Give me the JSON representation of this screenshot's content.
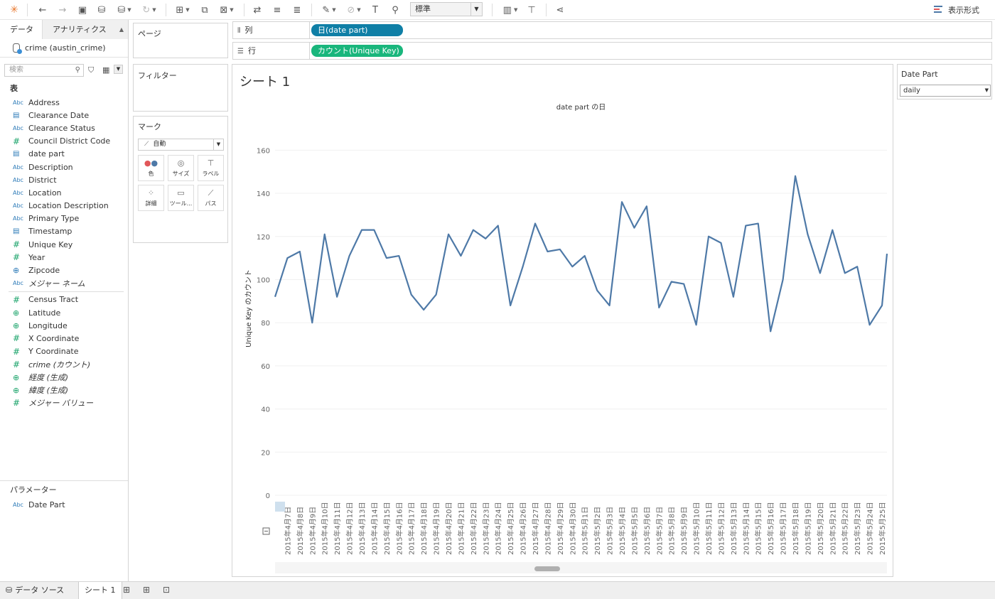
{
  "toolbar": {
    "standard_select": "標準",
    "show_me_label": "表示形式"
  },
  "data_pane": {
    "tab_data": "データ",
    "tab_analytics": "アナリティクス",
    "datasource": "crime (austin_crime)",
    "search_placeholder": "検索",
    "tables_header": "表",
    "dimensions": [
      {
        "icon": "Abc",
        "label": "Address",
        "type": "string"
      },
      {
        "icon": "cal",
        "label": "Clearance Date",
        "type": "date"
      },
      {
        "icon": "Abc",
        "label": "Clearance Status",
        "type": "string"
      },
      {
        "icon": "#",
        "label": "Council District Code",
        "type": "number-dim"
      },
      {
        "icon": "cal",
        "label": "date part",
        "type": "date"
      },
      {
        "icon": "Abc",
        "label": "Description",
        "type": "string"
      },
      {
        "icon": "Abc",
        "label": "District",
        "type": "string"
      },
      {
        "icon": "Abc",
        "label": "Location",
        "type": "string"
      },
      {
        "icon": "Abc",
        "label": "Location Description",
        "type": "string"
      },
      {
        "icon": "Abc",
        "label": "Primary Type",
        "type": "string"
      },
      {
        "icon": "cal",
        "label": "Timestamp",
        "type": "date"
      },
      {
        "icon": "#",
        "label": "Unique Key",
        "type": "number-dim"
      },
      {
        "icon": "#",
        "label": "Year",
        "type": "number-dim"
      },
      {
        "icon": "globe",
        "label": "Zipcode",
        "type": "geo"
      },
      {
        "icon": "Abc",
        "label": "メジャー ネーム",
        "type": "string",
        "italic": true
      }
    ],
    "measures": [
      {
        "icon": "#",
        "label": "Census Tract",
        "type": "measure"
      },
      {
        "icon": "globe",
        "label": "Latitude",
        "type": "geo-m"
      },
      {
        "icon": "globe",
        "label": "Longitude",
        "type": "geo-m"
      },
      {
        "icon": "#",
        "label": "X Coordinate",
        "type": "measure"
      },
      {
        "icon": "#",
        "label": "Y Coordinate",
        "type": "measure"
      },
      {
        "icon": "#",
        "label": "crime (カウント)",
        "type": "measure",
        "italic": true
      },
      {
        "icon": "globe",
        "label": "経度 (生成)",
        "type": "geo-m",
        "italic": true
      },
      {
        "icon": "globe",
        "label": "緯度 (生成)",
        "type": "geo-m",
        "italic": true
      },
      {
        "icon": "#",
        "label": "メジャー バリュー",
        "type": "measure",
        "italic": true
      }
    ],
    "parameters_header": "パラメーター",
    "parameters": [
      {
        "icon": "Abc",
        "label": "Date Part"
      }
    ]
  },
  "cards": {
    "pages_title": "ページ",
    "filters_title": "フィルター",
    "marks_title": "マーク",
    "marks_type": "自動",
    "mark_buttons": [
      "色",
      "サイズ",
      "ラベル",
      "詳細",
      "ツール...",
      "パス"
    ]
  },
  "shelves": {
    "columns_label": "列",
    "rows_label": "行",
    "columns_pill": "日(date part)",
    "rows_pill": "カウント(Unique Key)",
    "columns_color": "#0f7fa6",
    "rows_color": "#19b67c"
  },
  "sheet": {
    "title": "シート 1"
  },
  "parameter_card": {
    "title": "Date Part",
    "value": "daily"
  },
  "bottom": {
    "datasource_tab": "データ ソース",
    "sheet_tab": "シート 1"
  },
  "chart_data": {
    "type": "line",
    "title": "date part の日",
    "ylabel": "Unique Key のカウント",
    "ylim": [
      0,
      170
    ],
    "yticks": [
      0,
      20,
      40,
      60,
      80,
      100,
      120,
      140,
      160
    ],
    "line_color": "#4e79a7",
    "x": [
      "2015年4月7日",
      "2015年4月8日",
      "2015年4月9日",
      "2015年4月10日",
      "2015年4月11日",
      "2015年4月12日",
      "2015年4月13日",
      "2015年4月14日",
      "2015年4月15日",
      "2015年4月16日",
      "2015年4月17日",
      "2015年4月18日",
      "2015年4月19日",
      "2015年4月20日",
      "2015年4月21日",
      "2015年4月22日",
      "2015年4月23日",
      "2015年4月24日",
      "2015年4月25日",
      "2015年4月26日",
      "2015年4月27日",
      "2015年4月28日",
      "2015年4月29日",
      "2015年4月30日",
      "2015年5月1日",
      "2015年5月2日",
      "2015年5月3日",
      "2015年5月4日",
      "2015年5月5日",
      "2015年5月6日",
      "2015年5月7日",
      "2015年5月8日",
      "2015年5月9日",
      "2015年5月10日",
      "2015年5月11日",
      "2015年5月12日",
      "2015年5月13日",
      "2015年5月14日",
      "2015年5月15日",
      "2015年5月16日",
      "2015年5月17日",
      "2015年5月18日",
      "2015年5月19日",
      "2015年5月20日",
      "2015年5月21日",
      "2015年5月22日",
      "2015年5月23日",
      "2015年5月24日",
      "2015年5月25日"
    ],
    "y": [
      110,
      113,
      80,
      121,
      92,
      111,
      123,
      123,
      110,
      111,
      93,
      86,
      93,
      121,
      111,
      123,
      119,
      125,
      88,
      106,
      126,
      113,
      114,
      106,
      111,
      95,
      88,
      136,
      124,
      134,
      87,
      99,
      98,
      79,
      120,
      117,
      92,
      125,
      126,
      76,
      100,
      148,
      121,
      103,
      123,
      103,
      106,
      79,
      88
    ],
    "y_first_partial": 92,
    "y_last_partial": 112
  }
}
